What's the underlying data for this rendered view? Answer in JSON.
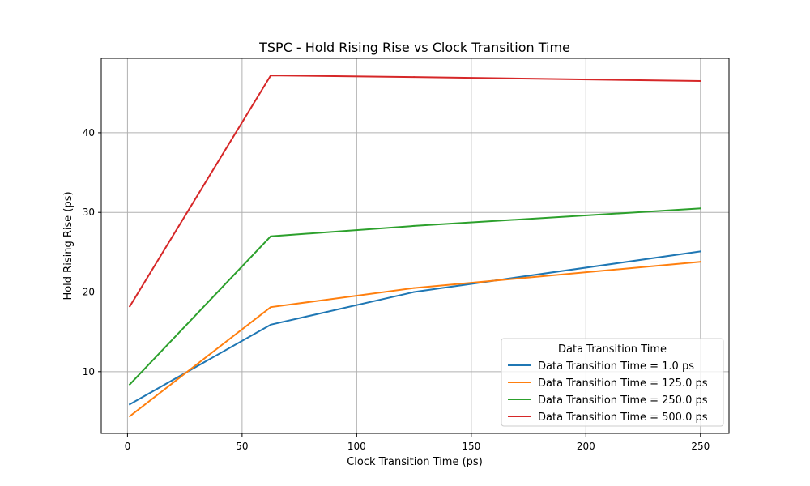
{
  "chart_data": {
    "type": "line",
    "title": "TSPC - Hold Rising Rise vs Clock Transition Time",
    "xlabel": "Clock Transition Time (ps)",
    "ylabel": "Hold Rising Rise (ps)",
    "xlim": [
      -11.45,
      262.45
    ],
    "ylim": [
      2.25,
      49.35
    ],
    "xticks": [
      0,
      50,
      100,
      150,
      200,
      250
    ],
    "yticks": [
      10,
      20,
      30,
      40
    ],
    "x": [
      1,
      62.5,
      125,
      250
    ],
    "grid": true,
    "legend": {
      "title": "Data Transition Time",
      "placement": "lower-right"
    },
    "series": [
      {
        "name": "Data Transition Time = 1.0 ps",
        "color": "#1f77b4",
        "values": [
          5.9,
          15.9,
          20.0,
          25.1
        ]
      },
      {
        "name": "Data Transition Time = 125.0 ps",
        "color": "#ff7f0e",
        "values": [
          4.4,
          18.1,
          20.5,
          23.8
        ]
      },
      {
        "name": "Data Transition Time = 250.0 ps",
        "color": "#2ca02c",
        "values": [
          8.4,
          27.0,
          28.3,
          30.5
        ]
      },
      {
        "name": "Data Transition Time = 500.0 ps",
        "color": "#d62728",
        "values": [
          18.2,
          47.2,
          47.0,
          46.5
        ]
      }
    ]
  }
}
